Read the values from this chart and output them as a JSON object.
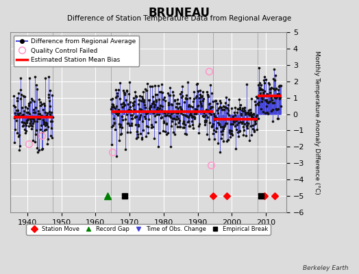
{
  "title": "BRUNEAU",
  "subtitle": "Difference of Station Temperature Data from Regional Average",
  "ylabel": "Monthly Temperature Anomaly Difference (°C)",
  "xlim": [
    1935,
    2016
  ],
  "ylim": [
    -6,
    5
  ],
  "yticks": [
    -6,
    -5,
    -4,
    -3,
    -2,
    -1,
    0,
    1,
    2,
    3,
    4,
    5
  ],
  "xticks": [
    1940,
    1950,
    1960,
    1970,
    1980,
    1990,
    2000,
    2010
  ],
  "background_color": "#dcdcdc",
  "plot_bg_color": "#dcdcdc",
  "grid_color": "#ffffff",
  "line_color": "#4444dd",
  "dot_color": "#111111",
  "bias_color": "#ff0000",
  "qc_color": "#ff99cc",
  "watermark": "Berkeley Earth",
  "seg1_start": 1936.0,
  "seg1_end": 1947.5,
  "seg1_bias": -0.2,
  "seg2_start": 1964.5,
  "seg2_end": 1994.5,
  "seg2_bias": 0.15,
  "seg3_start": 1994.5,
  "seg3_end": 2007.5,
  "seg3_bias": -0.3,
  "seg4_start": 2007.5,
  "seg4_end": 2014.5,
  "seg4_bias": 1.1,
  "station_moves": [
    1994.5,
    1998.5,
    2009.5,
    2012.5
  ],
  "record_gaps": [
    1963.5
  ],
  "obs_changes": [],
  "empirical_breaks": [
    1968.5,
    2008.5
  ],
  "vlines": [
    1947.5,
    1964.5,
    1994.5,
    2007.5
  ],
  "qc_x": [
    1940.5,
    1944.2,
    1965.0,
    1993.3,
    1993.9
  ],
  "qc_y": [
    -1.8,
    -1.3,
    -2.3,
    2.6,
    -3.1
  ]
}
